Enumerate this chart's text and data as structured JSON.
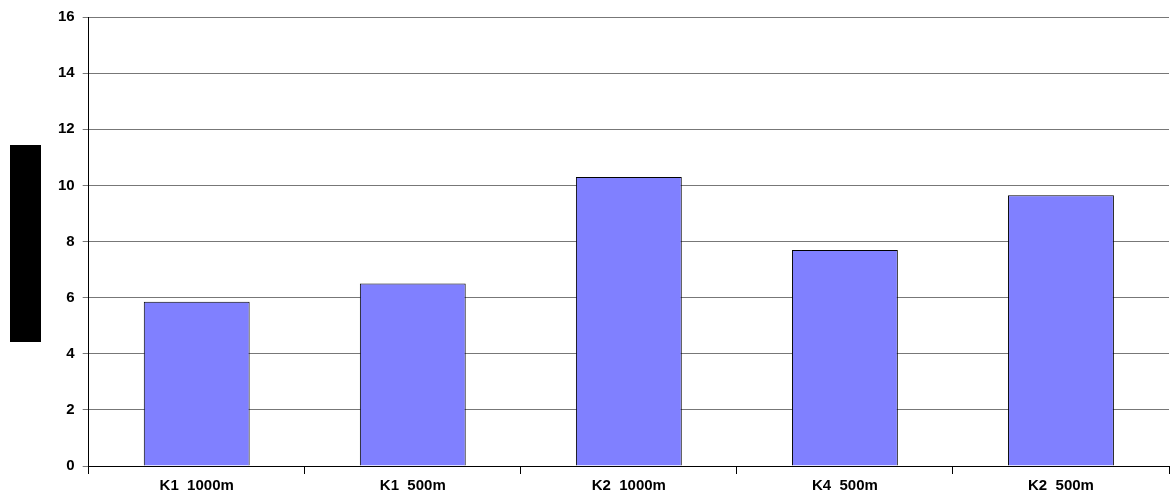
{
  "chart_data": {
    "type": "bar",
    "categories": [
      "K1  1000m",
      "K1  500m",
      "K2  1000m",
      "K4  500m",
      "K2  500m"
    ],
    "values": [
      5.85,
      6.5,
      10.3,
      7.7,
      9.65
    ],
    "color": "#8080ff",
    "ylim": [
      0,
      16
    ],
    "yticks": [
      0,
      2,
      4,
      6,
      8,
      10,
      12,
      14,
      16
    ],
    "grid": "y",
    "legend": false
  }
}
